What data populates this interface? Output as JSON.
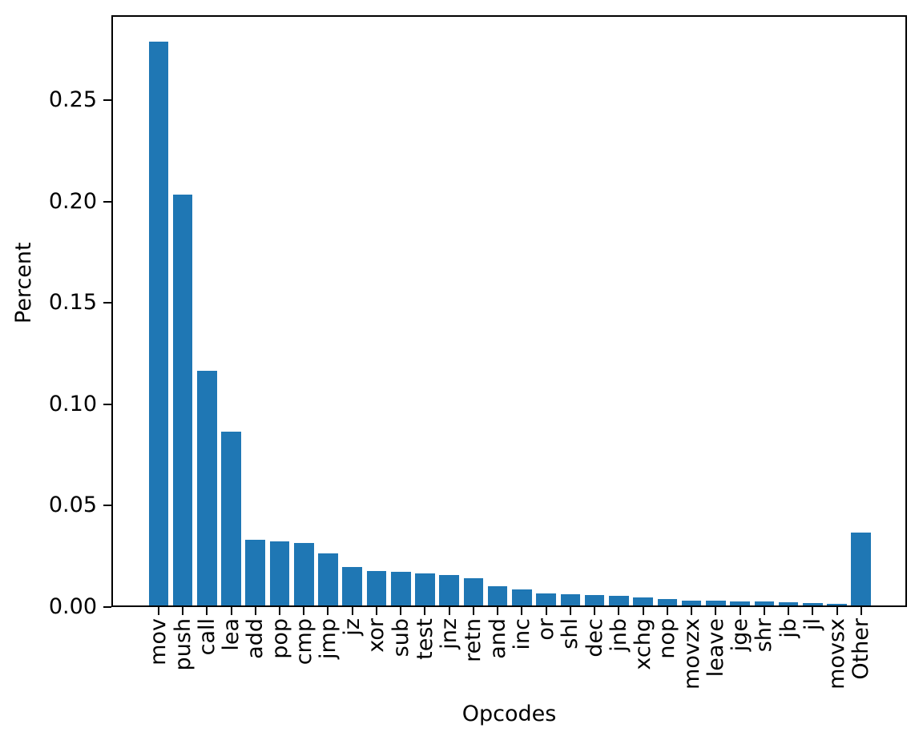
{
  "figure": {
    "background": "#ffffff",
    "text_color": "#000000"
  },
  "chart_data": {
    "type": "bar",
    "title": "",
    "xlabel": "Opcodes",
    "ylabel": "Percent",
    "categories": [
      "mov",
      "push",
      "call",
      "lea",
      "add",
      "pop",
      "cmp",
      "jmp",
      "jz",
      "xor",
      "sub",
      "test",
      "jnz",
      "retn",
      "and",
      "inc",
      "or",
      "shl",
      "dec",
      "jnb",
      "xchg",
      "nop",
      "movzx",
      "leave",
      "jge",
      "shr",
      "jb",
      "jl",
      "movsx",
      "Other"
    ],
    "values": [
      0.278,
      0.2025,
      0.1157,
      0.0856,
      0.0325,
      0.0317,
      0.0307,
      0.0256,
      0.019,
      0.0171,
      0.0164,
      0.0158,
      0.015,
      0.0134,
      0.0095,
      0.008,
      0.006,
      0.0056,
      0.0051,
      0.0046,
      0.0038,
      0.0033,
      0.0024,
      0.0023,
      0.0021,
      0.0019,
      0.0015,
      0.0013,
      0.0009,
      0.0358
    ],
    "ylim": [
      0,
      0.2919
    ],
    "yticks": [
      0.0,
      0.05,
      0.1,
      0.15,
      0.2,
      0.25
    ],
    "ytick_label_format": "2dp",
    "bar_color": "#1f77b4",
    "grid": false,
    "legend_position": "none",
    "x_tick_rotation_degrees": 90
  }
}
